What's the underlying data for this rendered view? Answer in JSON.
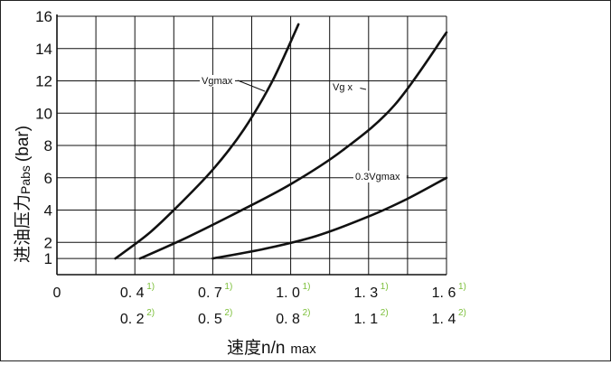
{
  "chart_data": {
    "type": "line",
    "ylabel_main": "进油压力",
    "ylabel_sub": "Pabs",
    "ylabel_unit": "(bar)",
    "xlabel_main": "速度n/n",
    "xlabel_sub": "max",
    "yticks": [
      1,
      2,
      4,
      6,
      8,
      10,
      12,
      14,
      16
    ],
    "x_zero_label": "0",
    "x_ticks_row1": [
      {
        "label": "0. 4",
        "note": "1)"
      },
      {
        "label": "0. 7",
        "note": "1)"
      },
      {
        "label": "1. 0",
        "note": "1)"
      },
      {
        "label": "1. 3",
        "note": "1)"
      },
      {
        "label": "1. 6",
        "note": "1)"
      }
    ],
    "x_ticks_row2": [
      {
        "label": "0. 2",
        "note": "2)"
      },
      {
        "label": "0. 5",
        "note": "2)"
      },
      {
        "label": "0. 8",
        "note": "2)"
      },
      {
        "label": "1. 1",
        "note": "2)"
      },
      {
        "label": "1. 4",
        "note": "2)"
      }
    ],
    "xlim": [
      0.1,
      1.6
    ],
    "ylim": [
      0,
      16
    ],
    "grid": true,
    "series": [
      {
        "label": "Vgmax",
        "points": [
          [
            0.325,
            1.0
          ],
          [
            0.45,
            2.5
          ],
          [
            0.55,
            4.0
          ],
          [
            0.7,
            6.5
          ],
          [
            0.82,
            9.0
          ],
          [
            0.93,
            12.0
          ],
          [
            1.03,
            15.5
          ]
        ]
      },
      {
        "label": "Vg x",
        "points": [
          [
            0.42,
            1.0
          ],
          [
            0.6,
            2.3
          ],
          [
            0.8,
            3.9
          ],
          [
            1.0,
            5.6
          ],
          [
            1.2,
            7.7
          ],
          [
            1.4,
            10.5
          ],
          [
            1.6,
            15.0
          ]
        ]
      },
      {
        "label": "0.3Vgmax",
        "points": [
          [
            0.7,
            1.0
          ],
          [
            0.9,
            1.6
          ],
          [
            1.1,
            2.4
          ],
          [
            1.3,
            3.6
          ],
          [
            1.45,
            4.7
          ],
          [
            1.6,
            6.0
          ]
        ]
      }
    ]
  }
}
